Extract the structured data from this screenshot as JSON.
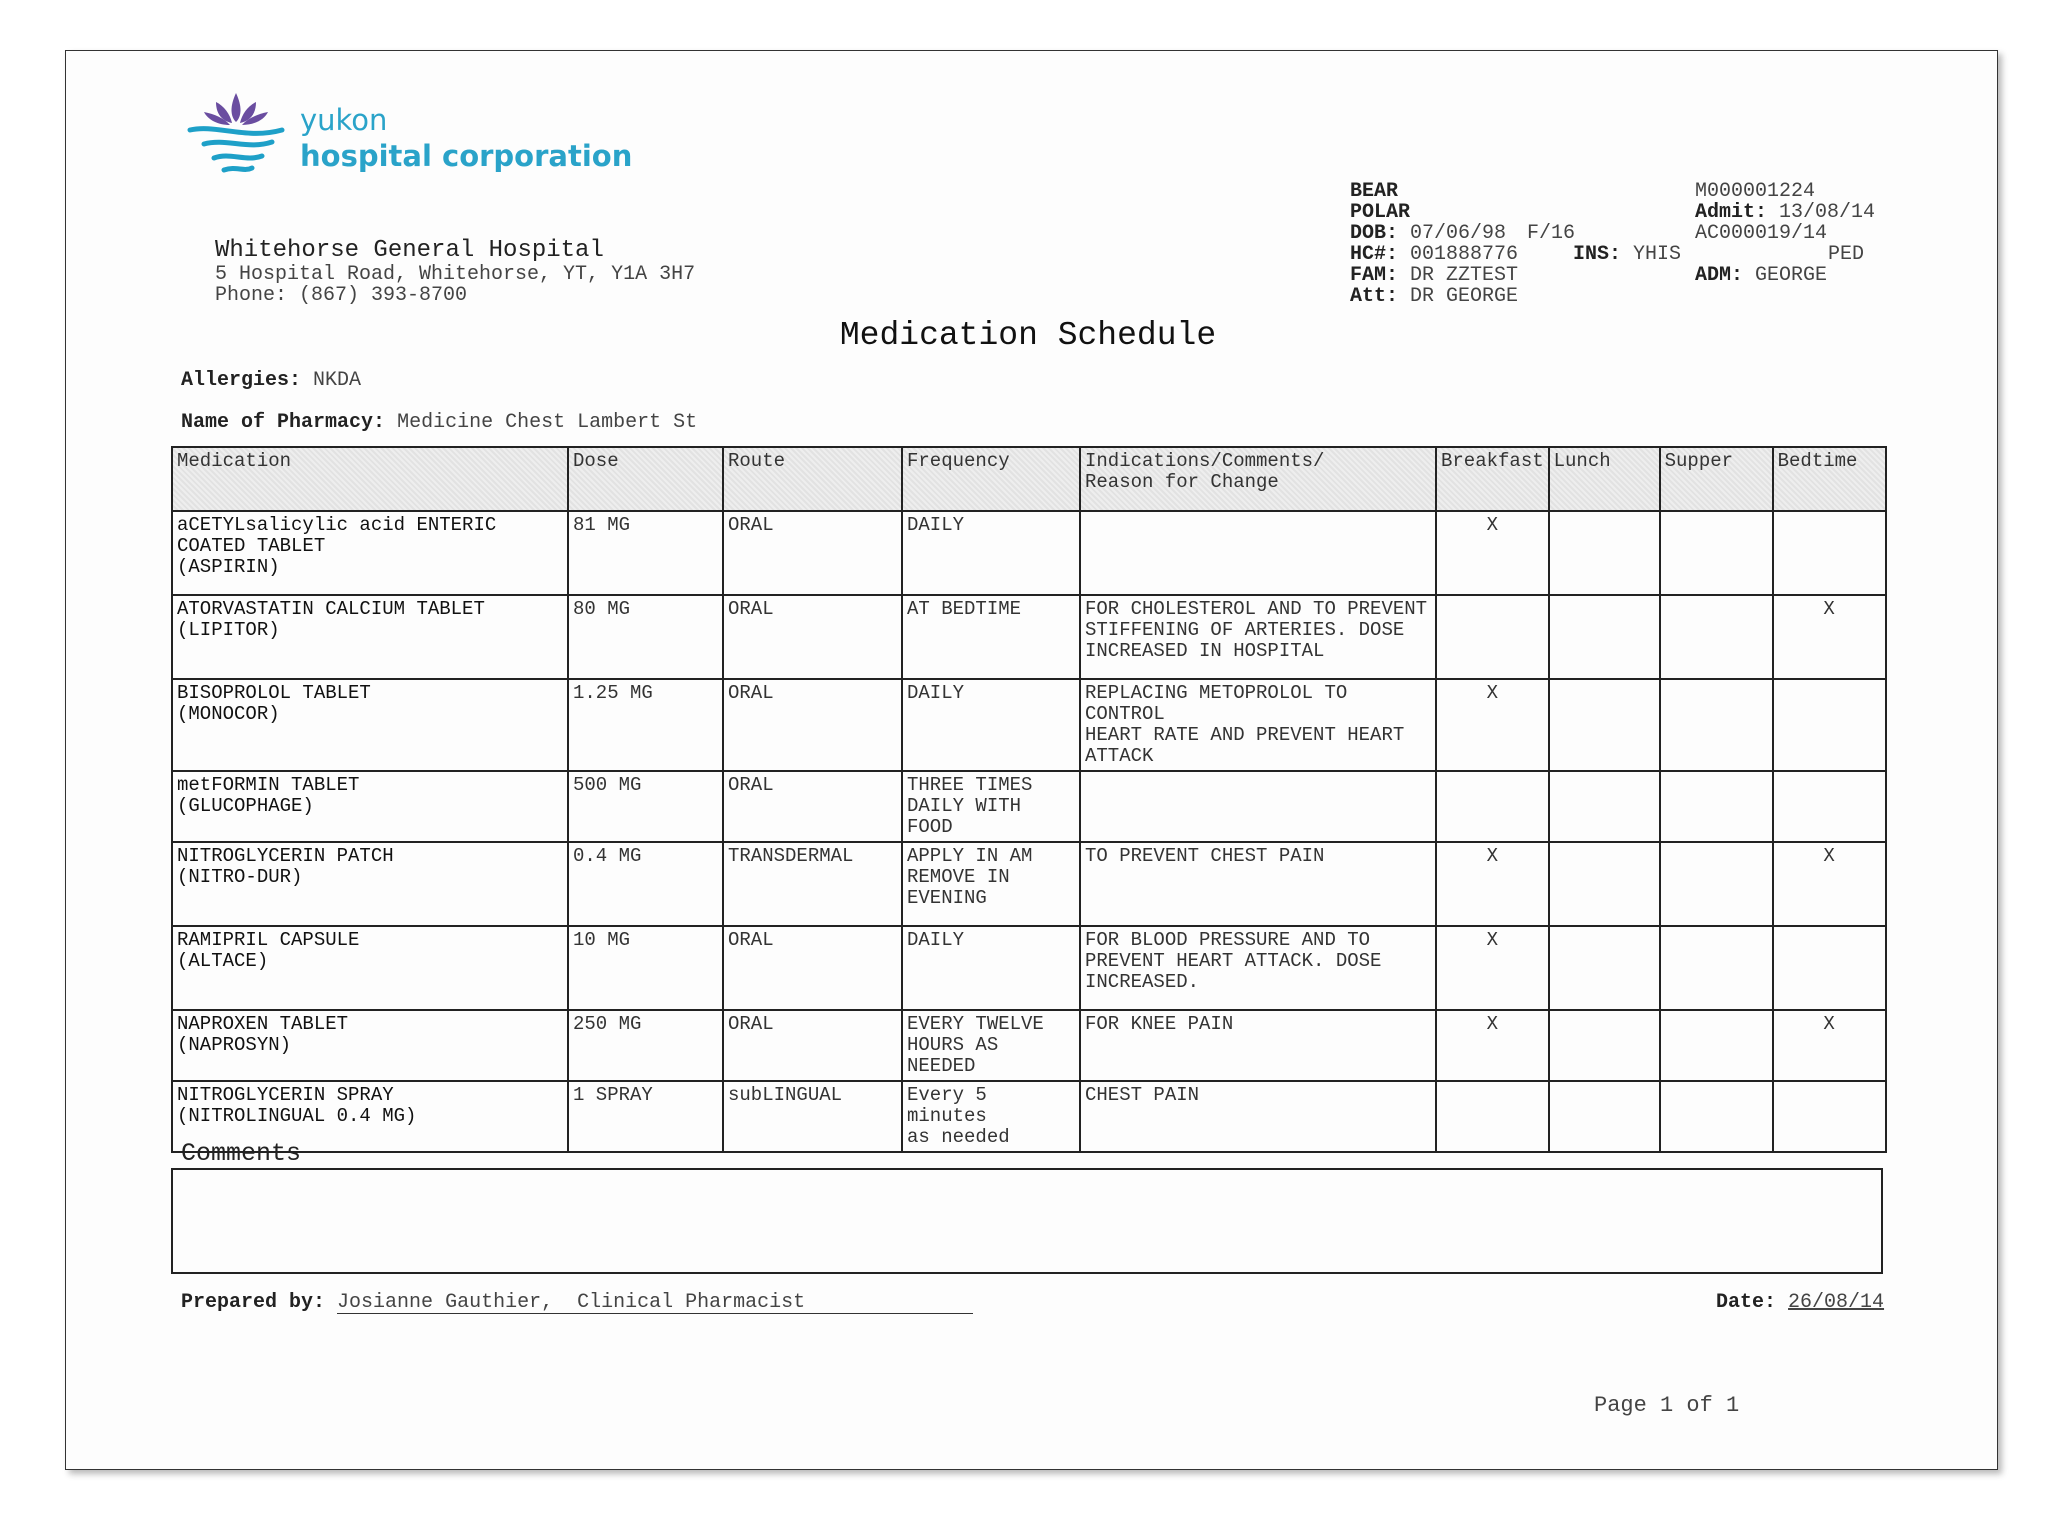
{
  "logo": {
    "line1": "yukon",
    "line2": "hospital corporation"
  },
  "hospital": {
    "name": "Whitehorse General Hospital",
    "address": "5 Hospital Road, Whitehorse, YT, Y1A 3H7",
    "phone": "Phone: (867) 393-8700"
  },
  "patient": {
    "surname": "BEAR",
    "given_name": "POLAR",
    "dob": {
      "label": "DOB:",
      "value": "07/06/98"
    },
    "sex_age": "F/16",
    "hc": {
      "label": "HC#:",
      "value": "001888776"
    },
    "ins": {
      "label": "INS:",
      "value": "YHIS"
    },
    "fam": {
      "label": "FAM:",
      "value": "DR ZZTEST"
    },
    "att": {
      "label": "Att:",
      "value": "DR GEORGE"
    },
    "mrn": "M000001224",
    "admit": {
      "label": "Admit:",
      "value": "13/08/14"
    },
    "account": "AC000019/14",
    "unit": "PED",
    "adm": {
      "label": "ADM:",
      "value": "GEORGE"
    }
  },
  "title": "Medication Schedule",
  "allergies": {
    "label": "Allergies:",
    "value": "NKDA"
  },
  "pharmacy": {
    "label": "Name of Pharmacy:",
    "value": "Medicine Chest Lambert St"
  },
  "table": {
    "headers": [
      "Medication",
      "Dose",
      "Route",
      "Frequency",
      "Indications/Comments/\n  Reason for Change",
      "Breakfast",
      "Lunch",
      "Supper",
      "Bedtime"
    ],
    "rows": [
      [
        "aCETYLsalicylic acid ENTERIC\nCOATED TABLET\n(ASPIRIN)",
        "81 MG",
        "ORAL",
        "DAILY",
        null,
        "X",
        null,
        null,
        null
      ],
      [
        "ATORVASTATIN CALCIUM TABLET\n(LIPITOR)",
        "80 MG",
        "ORAL",
        "AT BEDTIME",
        "FOR CHOLESTEROL AND TO PREVENT\nSTIFFENING OF ARTERIES. DOSE\nINCREASED IN HOSPITAL",
        null,
        null,
        null,
        "X"
      ],
      [
        "BISOPROLOL TABLET\n(MONOCOR)",
        "1.25 MG",
        "ORAL",
        "DAILY",
        "REPLACING METOPROLOL TO CONTROL\nHEART RATE AND PREVENT HEART\nATTACK",
        "X",
        null,
        null,
        null
      ],
      [
        "metFORMIN TABLET\n(GLUCOPHAGE)",
        "500 MG",
        "ORAL",
        "THREE TIMES\nDAILY WITH FOOD",
        null,
        null,
        null,
        null,
        null
      ],
      [
        "NITROGLYCERIN PATCH\n(NITRO-DUR)",
        "0.4 MG",
        "TRANSDERMAL",
        "APPLY IN AM\nREMOVE IN\nEVENING",
        "TO PREVENT CHEST PAIN",
        "X",
        null,
        null,
        "X"
      ],
      [
        "RAMIPRIL CAPSULE\n(ALTACE)",
        "10 MG",
        "ORAL",
        "DAILY",
        "FOR BLOOD PRESSURE AND TO\nPREVENT HEART ATTACK. DOSE\nINCREASED.",
        "X",
        null,
        null,
        null
      ],
      [
        "NAPROXEN TABLET\n(NAPROSYN)",
        "250 MG",
        "ORAL",
        "EVERY TWELVE\nHOURS AS NEEDED",
        "FOR KNEE PAIN",
        "X",
        null,
        null,
        "X"
      ],
      [
        "NITROGLYCERIN SPRAY\n(NITROLINGUAL 0.4 MG)",
        "1 SPRAY",
        "subLINGUAL",
        "Every 5 minutes\nas needed",
        "CHEST PAIN",
        null,
        null,
        null,
        null
      ]
    ]
  },
  "comments": {
    "label": "Comments"
  },
  "prepared_by": {
    "label": "Prepared by:",
    "value": "Josianne Gauthier,  Clinical Pharmacist"
  },
  "date": {
    "label": "Date:",
    "value": "26/08/14"
  },
  "footer": {
    "page": "Page 1 of 1"
  }
}
